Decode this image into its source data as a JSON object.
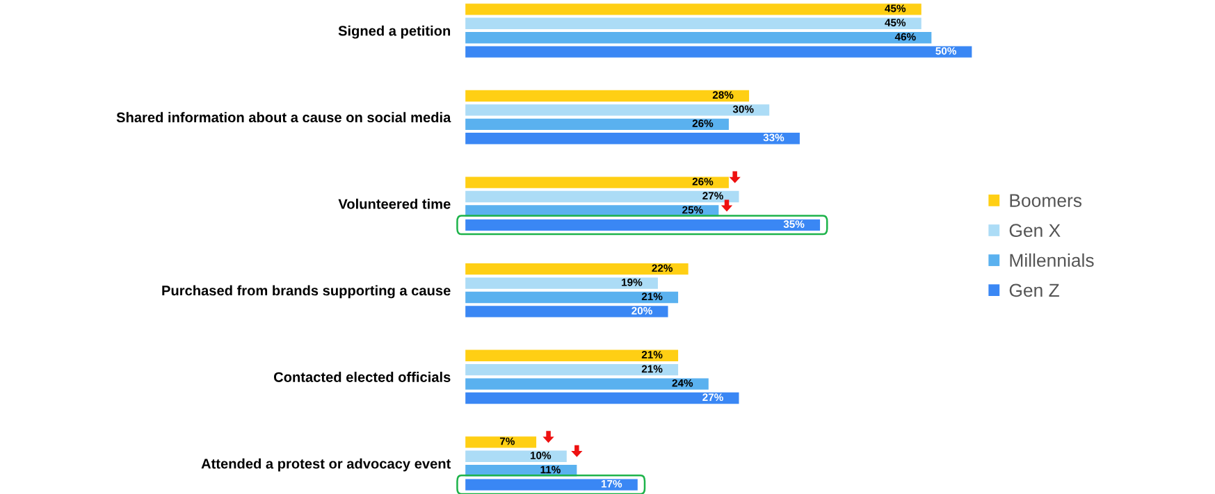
{
  "chart_data": {
    "type": "bar",
    "orientation": "horizontal",
    "tick_labels": "y",
    "grid": false,
    "legend": "right",
    "categories": [
      "Signed a petition",
      "Shared information about a cause on social media",
      "Volunteered time",
      "Purchased from brands supporting a cause",
      "Contacted elected officials",
      "Attended a protest or advocacy event"
    ],
    "series": [
      {
        "name": "Boomers",
        "color": "#ffcf14",
        "values": [
          45,
          28,
          26,
          22,
          21,
          7
        ],
        "value_labels": [
          "45%",
          "28%",
          "26%",
          "22%",
          "21%",
          "7%"
        ]
      },
      {
        "name": "Gen X",
        "color": "#acdcf6",
        "values": [
          45,
          30,
          27,
          19,
          21,
          10
        ],
        "value_labels": [
          "45%",
          "30%",
          "27%",
          "19%",
          "21%",
          "10%"
        ]
      },
      {
        "name": "Millennials",
        "color": "#5ab1ef",
        "values": [
          46,
          26,
          25,
          21,
          24,
          11
        ],
        "value_labels": [
          "46%",
          "26%",
          "25%",
          "21%",
          "24%",
          "11%"
        ]
      },
      {
        "name": "Gen Z",
        "color": "#3a87f4",
        "values": [
          50,
          33,
          35,
          20,
          27,
          17
        ],
        "value_labels": [
          "50%",
          "33%",
          "35%",
          "20%",
          "27%",
          "17%"
        ]
      }
    ]
  }
}
